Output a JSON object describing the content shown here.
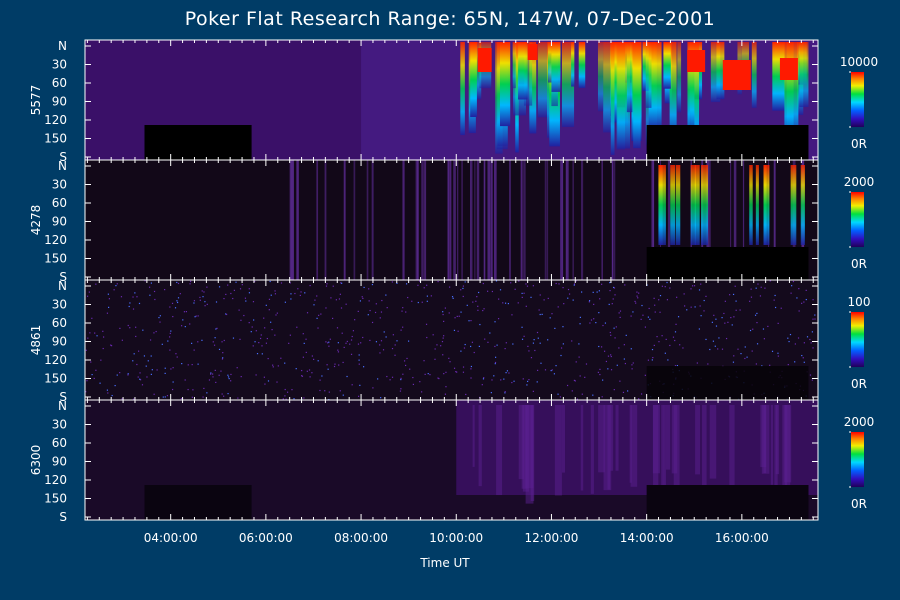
{
  "title": "Poker Flat Research Range: 65N, 147W, 07-Dec-2001",
  "xlabel": "Time UT",
  "chart_data": {
    "type": "heatmap",
    "x_axis": {
      "label": "Time UT",
      "range_hours": [
        2.2,
        17.6
      ],
      "tick_hours": [
        4,
        6,
        8,
        10,
        12,
        14,
        16
      ],
      "tick_labels": [
        "04:00:00",
        "06:00:00",
        "08:00:00",
        "10:00:00",
        "12:00:00",
        "14:00:00",
        "16:00:00"
      ]
    },
    "y_axis": {
      "range_deg": [
        0,
        180
      ],
      "tick_labels": [
        "N",
        "30",
        "60",
        "90",
        "120",
        "150",
        "S"
      ]
    },
    "panels": [
      {
        "wavelength": "5577",
        "scale_max": "10000",
        "scale_min": "0R"
      },
      {
        "wavelength": "4278",
        "scale_max": "2000",
        "scale_min": "0R"
      },
      {
        "wavelength": "4861",
        "scale_max": "100",
        "scale_min": "0R"
      },
      {
        "wavelength": "6300",
        "scale_max": "2000",
        "scale_min": "0R"
      }
    ]
  }
}
